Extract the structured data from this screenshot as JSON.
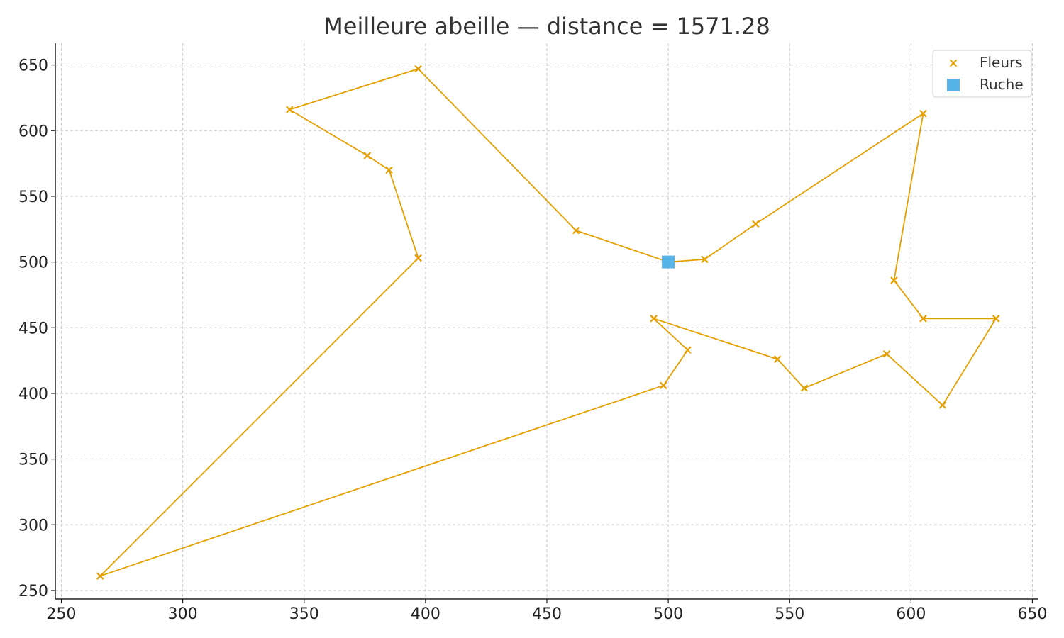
{
  "chart_data": {
    "type": "scatter",
    "title": "Meilleure abeille — distance = 1571.28",
    "xlabel": "",
    "ylabel": "",
    "xlim": [
      247.5,
      652.5
    ],
    "ylim": [
      243.5,
      666.5
    ],
    "x_ticks": [
      250,
      300,
      350,
      400,
      450,
      500,
      550,
      600,
      650
    ],
    "y_ticks": [
      250,
      300,
      350,
      400,
      450,
      500,
      550,
      600,
      650
    ],
    "grid": true,
    "legend_position": "top-right",
    "series": [
      {
        "name": "Fleurs",
        "kind": "scatter-route",
        "marker": "x",
        "color": "#E69F00",
        "route_order": [
          [
            500,
            500
          ],
          [
            515,
            502
          ],
          [
            536,
            529
          ],
          [
            605,
            613
          ],
          [
            593,
            486
          ],
          [
            605,
            457
          ],
          [
            635,
            457
          ],
          [
            613,
            391
          ],
          [
            590,
            430
          ],
          [
            556,
            404
          ],
          [
            545,
            426
          ],
          [
            494,
            457
          ],
          [
            508,
            433
          ],
          [
            498,
            406
          ],
          [
            266,
            261
          ],
          [
            397,
            503
          ],
          [
            385,
            570
          ],
          [
            376,
            581
          ],
          [
            344,
            616
          ],
          [
            397,
            647
          ],
          [
            462,
            524
          ],
          [
            500,
            500
          ]
        ]
      },
      {
        "name": "Ruche",
        "kind": "scatter",
        "marker": "square",
        "color": "#56B4E9",
        "points": [
          [
            500,
            500
          ]
        ]
      }
    ]
  }
}
